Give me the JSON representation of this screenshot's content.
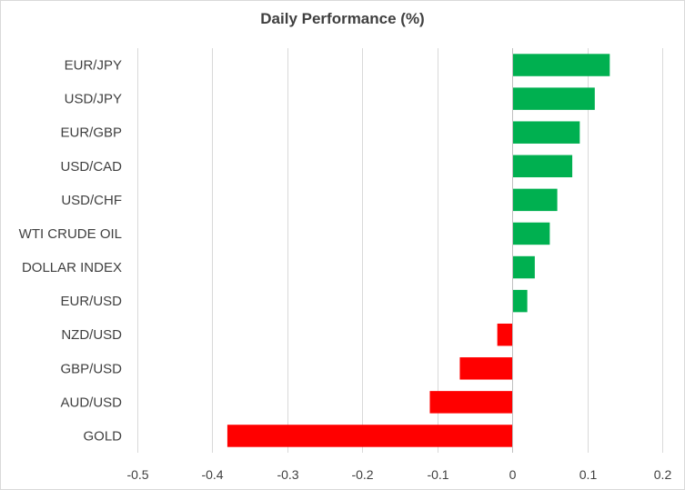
{
  "chart_data": {
    "type": "bar",
    "orientation": "horizontal",
    "title": "Daily Performance  (%)",
    "categories": [
      "EUR/JPY",
      "USD/JPY",
      "EUR/GBP",
      "USD/CAD",
      "USD/CHF",
      "WTI CRUDE OIL",
      "DOLLAR INDEX",
      "EUR/USD",
      "NZD/USD",
      "GBP/USD",
      "AUD/USD",
      "GOLD"
    ],
    "values": [
      0.13,
      0.11,
      0.09,
      0.08,
      0.06,
      0.05,
      0.03,
      0.02,
      -0.02,
      -0.07,
      -0.11,
      -0.38
    ],
    "xlim": [
      -0.5,
      0.2
    ],
    "xticks": [
      -0.5,
      -0.4,
      -0.3,
      -0.2,
      -0.1,
      0,
      0.1,
      0.2
    ],
    "xtick_labels": [
      "-0.5",
      "-0.4",
      "-0.3",
      "-0.2",
      "-0.1",
      "0",
      "0.1",
      "0.2"
    ],
    "grid": true,
    "legend": "none",
    "colors": {
      "positive": "#00b050",
      "negative": "#ff0000",
      "grid": "#d9d9d9",
      "text": "#404040"
    }
  }
}
